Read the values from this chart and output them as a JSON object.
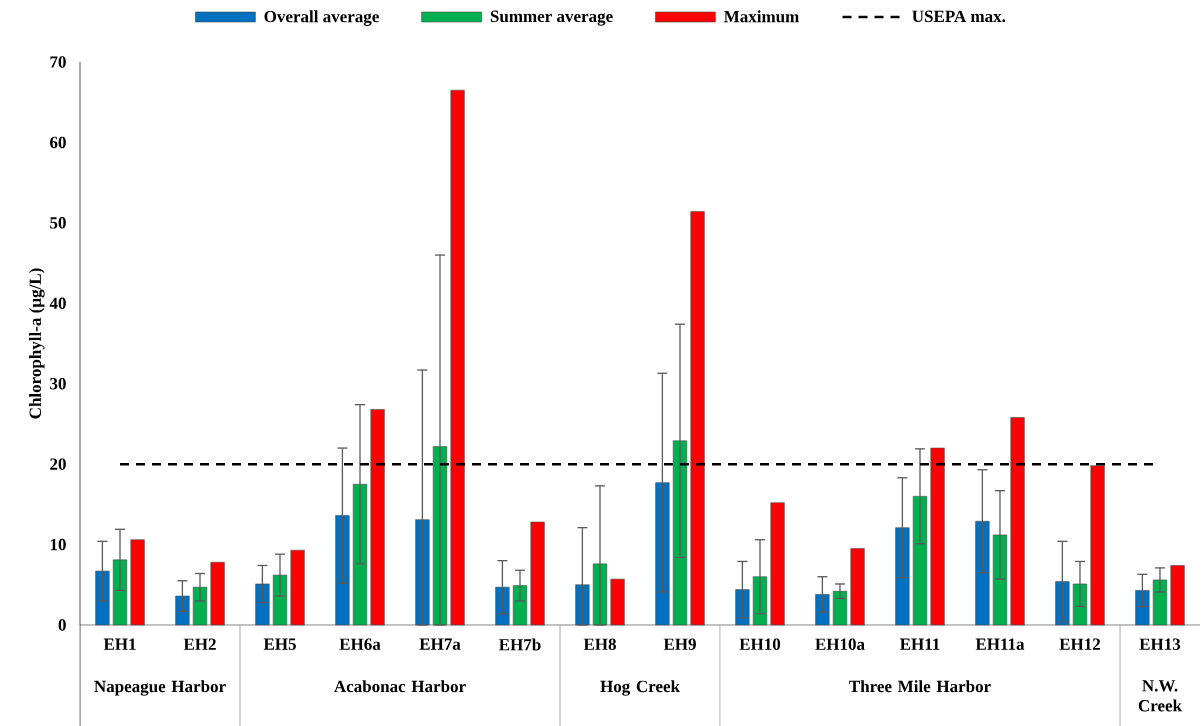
{
  "chart_data": {
    "type": "bar",
    "ylabel": "Chlorophyll-a (µg/L)",
    "categories": [
      "EH1",
      "EH2",
      "EH5",
      "EH6a",
      "EH7a",
      "EH7b",
      "EH8",
      "EH9",
      "EH10",
      "EH10a",
      "EH11",
      "EH11a",
      "EH12",
      "EH13"
    ],
    "series": [
      {
        "name": "Overall average",
        "color": "#0070c0",
        "values": [
          6.7,
          3.6,
          5.1,
          13.6,
          13.1,
          4.7,
          5.0,
          17.7,
          4.4,
          3.8,
          12.1,
          12.9,
          5.4,
          4.3
        ],
        "errors": [
          3.7,
          1.9,
          2.3,
          8.4,
          [
            0,
            31.7
          ],
          3.3,
          [
            0,
            12.1
          ],
          13.6,
          3.5,
          2.2,
          6.2,
          6.4,
          5.0,
          2.0
        ]
      },
      {
        "name": "Summer average",
        "color": "#00b050",
        "values": [
          8.1,
          4.7,
          6.2,
          17.5,
          22.2,
          4.9,
          7.6,
          22.9,
          6.0,
          4.2,
          16.0,
          11.2,
          5.1,
          5.6
        ],
        "errors": [
          3.8,
          1.7,
          2.6,
          9.9,
          [
            0,
            46.0
          ],
          1.9,
          [
            0,
            17.3
          ],
          14.5,
          4.6,
          0.9,
          5.9,
          5.5,
          2.8,
          1.5
        ]
      },
      {
        "name": "Maximum",
        "color": "#ff0000",
        "values": [
          10.6,
          7.8,
          9.3,
          26.8,
          66.5,
          12.8,
          5.7,
          51.4,
          15.2,
          9.5,
          22.0,
          25.8,
          19.8,
          7.4
        ]
      }
    ],
    "ylim": [
      0,
      70
    ],
    "yticks": [
      0,
      10,
      20,
      30,
      40,
      50,
      60,
      70
    ],
    "ref_lines": [
      {
        "axis": "y",
        "value": 20,
        "label": "USEPA max.",
        "color": "#000000",
        "line_style": "dashed"
      }
    ],
    "legend": "top",
    "annotations": [
      "Napeague Harbor",
      "Acabonac Harbor",
      "Hog Creek",
      "Three Mile Harbor",
      "N.W. Creek"
    ]
  }
}
